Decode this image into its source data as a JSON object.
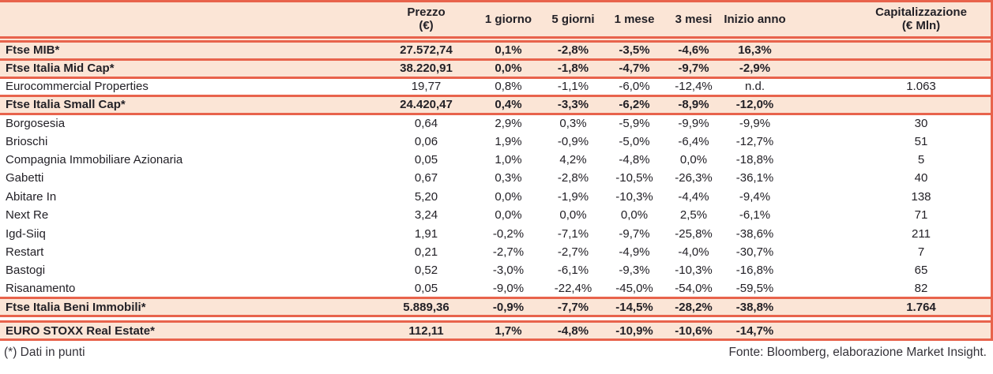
{
  "colors": {
    "accent_red": "#e8634c",
    "row_peach": "#fbe5d6",
    "text_ink": "#232127"
  },
  "header": {
    "columns": [
      "",
      "Prezzo\n(€)",
      "1 giorno",
      "5 giorni",
      "1 mese",
      "3 mesi",
      "Inizio anno",
      "Capitalizzazione\n(€ Mln)"
    ]
  },
  "rows": [
    {
      "label": "Ftse MIB*",
      "style": "index",
      "cells": [
        "27.572,74",
        "0,1%",
        "-2,8%",
        "-3,5%",
        "-4,6%",
        "16,3%",
        ""
      ]
    },
    {
      "label": "Ftse Italia Mid Cap*",
      "style": "index",
      "cells": [
        "38.220,91",
        "0,0%",
        "-1,8%",
        "-4,7%",
        "-9,7%",
        "-2,9%",
        ""
      ]
    },
    {
      "label": "Eurocommercial Properties",
      "style": "stock",
      "bordered": true,
      "cells": [
        "19,77",
        "0,8%",
        "-1,1%",
        "-6,0%",
        "-12,4%",
        "n.d.",
        "1.063"
      ]
    },
    {
      "label": "Ftse Italia Small Cap*",
      "style": "index",
      "cells": [
        "24.420,47",
        "0,4%",
        "-3,3%",
        "-6,2%",
        "-8,9%",
        "-12,0%",
        ""
      ]
    },
    {
      "label": "Borgosesia",
      "style": "stock",
      "cells": [
        "0,64",
        "2,9%",
        "0,3%",
        "-5,9%",
        "-9,9%",
        "-9,9%",
        "30"
      ]
    },
    {
      "label": "Brioschi",
      "style": "stock",
      "cells": [
        "0,06",
        "1,9%",
        "-0,9%",
        "-5,0%",
        "-6,4%",
        "-12,7%",
        "51"
      ]
    },
    {
      "label": "Compagnia Immobiliare Azionaria",
      "style": "stock",
      "cells": [
        "0,05",
        "1,0%",
        "4,2%",
        "-4,8%",
        "0,0%",
        "-18,8%",
        "5"
      ]
    },
    {
      "label": "Gabetti",
      "style": "stock",
      "cells": [
        "0,67",
        "0,3%",
        "-2,8%",
        "-10,5%",
        "-26,3%",
        "-36,1%",
        "40"
      ]
    },
    {
      "label": "Abitare In",
      "style": "stock",
      "cells": [
        "5,20",
        "0,0%",
        "-1,9%",
        "-10,3%",
        "-4,4%",
        "-9,4%",
        "138"
      ]
    },
    {
      "label": "Next Re",
      "style": "stock",
      "cells": [
        "3,24",
        "0,0%",
        "0,0%",
        "0,0%",
        "2,5%",
        "-6,1%",
        "71"
      ]
    },
    {
      "label": "Igd-Siiq",
      "style": "stock",
      "cells": [
        "1,91",
        "-0,2%",
        "-7,1%",
        "-9,7%",
        "-25,8%",
        "-38,6%",
        "211"
      ]
    },
    {
      "label": "Restart",
      "style": "stock",
      "cells": [
        "0,21",
        "-2,7%",
        "-2,7%",
        "-4,9%",
        "-4,0%",
        "-30,7%",
        "7"
      ]
    },
    {
      "label": "Bastogi",
      "style": "stock",
      "cells": [
        "0,52",
        "-3,0%",
        "-6,1%",
        "-9,3%",
        "-10,3%",
        "-16,8%",
        "65"
      ]
    },
    {
      "label": "Risanamento",
      "style": "stock",
      "cells": [
        "0,05",
        "-9,0%",
        "-22,4%",
        "-45,0%",
        "-54,0%",
        "-59,5%",
        "82"
      ]
    },
    {
      "label": "Ftse Italia Beni Immobili*",
      "style": "index",
      "top_border": true,
      "cells": [
        "5.889,36",
        "-0,9%",
        "-7,7%",
        "-14,5%",
        "-28,2%",
        "-38,8%",
        "1.764"
      ]
    },
    {
      "style": "spacer"
    },
    {
      "label": "EURO STOXX Real Estate*",
      "style": "index",
      "cells": [
        "112,11",
        "1,7%",
        "-4,8%",
        "-10,9%",
        "-10,6%",
        "-14,7%",
        ""
      ]
    }
  ],
  "footer": {
    "note": "(*) Dati in punti",
    "source": "Fonte: Bloomberg, elaborazione Market Insight."
  }
}
